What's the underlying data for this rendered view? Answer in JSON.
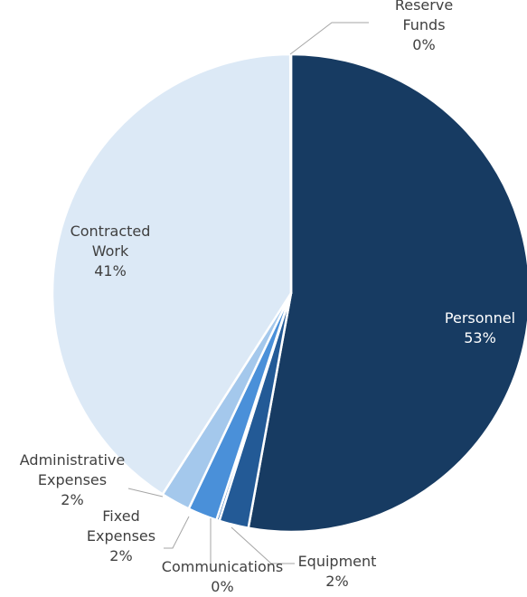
{
  "chart_data": {
    "type": "pie",
    "title": "",
    "slices": [
      {
        "label": [
          "Personnel"
        ],
        "value": 53,
        "pct_label": "53%",
        "color": "#173b62"
      },
      {
        "label": [
          "Equipment"
        ],
        "value": 2,
        "pct_label": "2%",
        "color": "#235a96"
      },
      {
        "label": [
          "Communications"
        ],
        "value": 0.2,
        "pct_label": "0%",
        "color": "#2f6db5"
      },
      {
        "label": [
          "Fixed",
          "Expenses"
        ],
        "value": 2,
        "pct_label": "2%",
        "color": "#4a90d9"
      },
      {
        "label": [
          "Administrative",
          "Expenses"
        ],
        "value": 2,
        "pct_label": "2%",
        "color": "#a4c8ec"
      },
      {
        "label": [
          "Contracted",
          "Work"
        ],
        "value": 41,
        "pct_label": "41%",
        "color": "#dce9f6"
      },
      {
        "label": [
          "Reserve",
          "Funds"
        ],
        "value": 0.05,
        "pct_label": "0%",
        "color": "#d0d0d0"
      }
    ]
  }
}
